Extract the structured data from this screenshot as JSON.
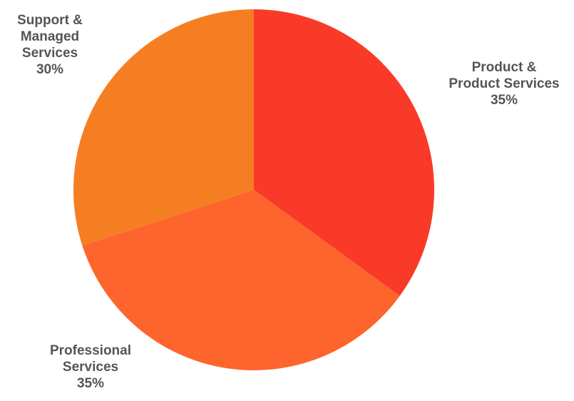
{
  "chart_data": {
    "type": "pie",
    "title": "",
    "slices": [
      {
        "label_lines": [
          "Product &",
          "Product Services"
        ],
        "percent_label": "35%",
        "value": 35,
        "color": "#f93a28"
      },
      {
        "label_lines": [
          "Professional",
          "Services"
        ],
        "percent_label": "35%",
        "value": 35,
        "color": "#fe652d"
      },
      {
        "label_lines": [
          "Support &",
          "Managed",
          "Services"
        ],
        "percent_label": "30%",
        "value": 30,
        "color": "#f57e23"
      }
    ],
    "start_angle": "12 o'clock",
    "direction": "clockwise",
    "legend": "none"
  }
}
